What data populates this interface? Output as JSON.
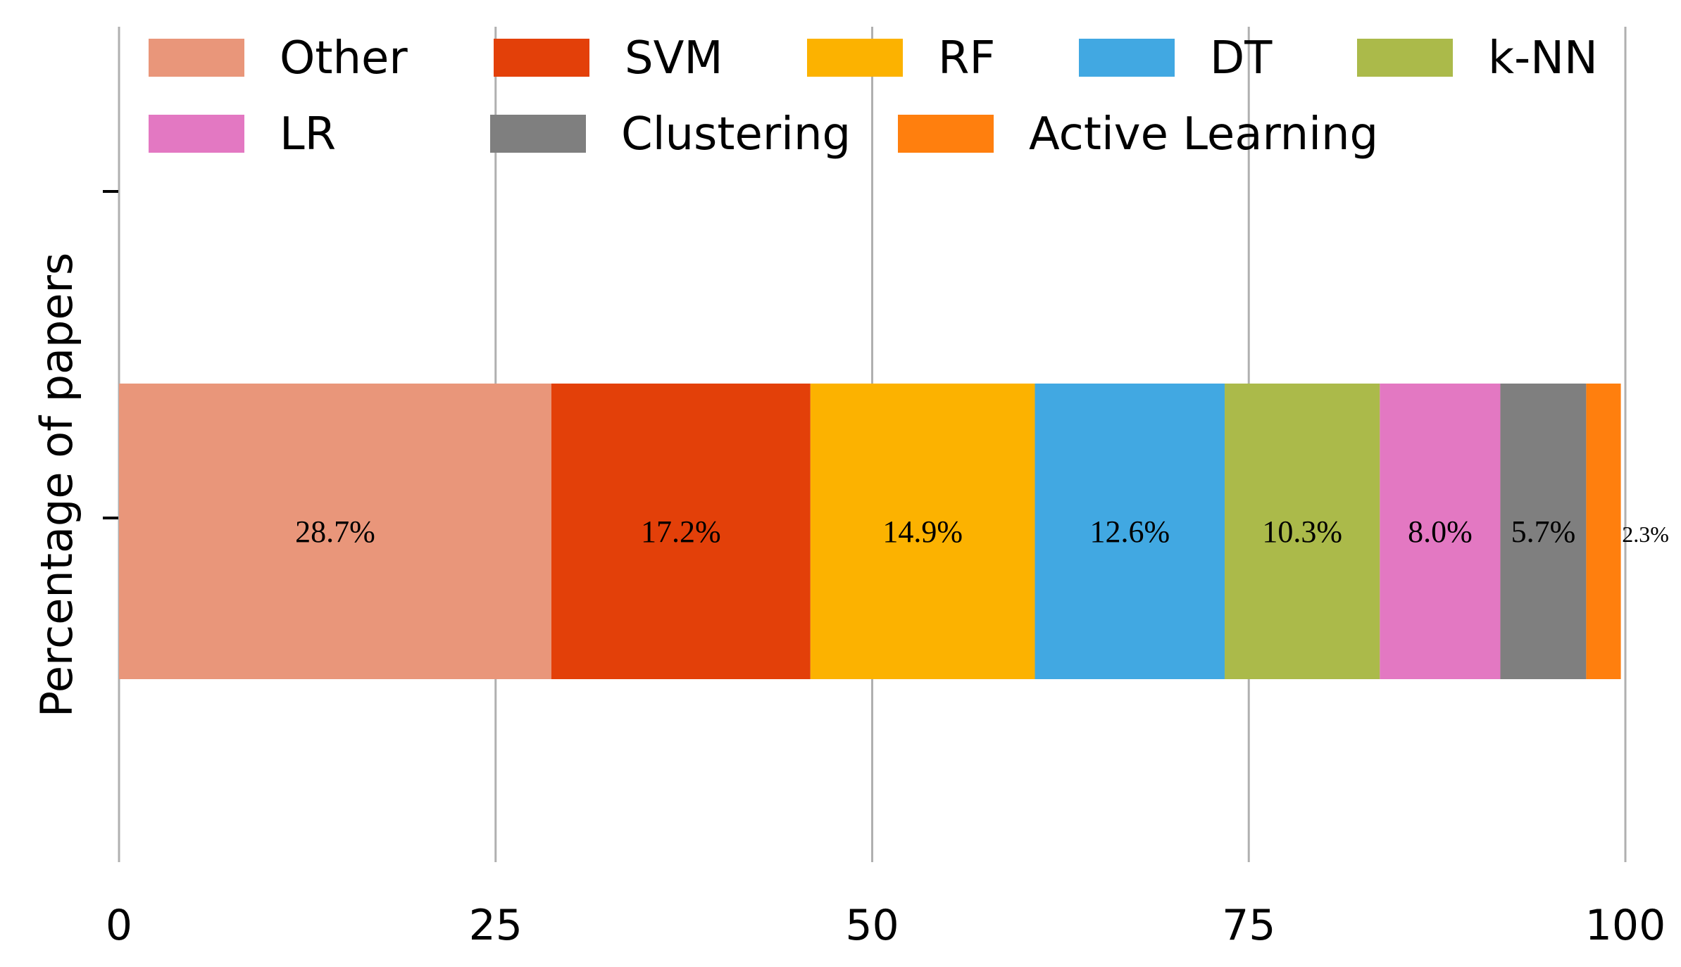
{
  "chart_data": {
    "type": "bar",
    "orientation": "horizontal-stacked",
    "title": "",
    "xlabel": "",
    "ylabel": "Percentage of papers",
    "xlim": [
      0,
      100
    ],
    "xticks": [
      "0",
      "25",
      "50",
      "75",
      "100"
    ],
    "grid": "vertical",
    "legend_position": "top",
    "series": [
      {
        "name": "Other",
        "value": 28.7,
        "label": "28.7%",
        "color": "#E9967A"
      },
      {
        "name": "SVM",
        "value": 17.2,
        "label": "17.2%",
        "color": "#E34009"
      },
      {
        "name": "RF",
        "value": 14.9,
        "label": "14.9%",
        "color": "#FCB200"
      },
      {
        "name": "DT",
        "value": 12.6,
        "label": "12.6%",
        "color": "#41A8E2"
      },
      {
        "name": "k-NN",
        "value": 10.3,
        "label": "10.3%",
        "color": "#ABBA4A"
      },
      {
        "name": "LR",
        "value": 8.0,
        "label": "8.0%",
        "color": "#E378C2"
      },
      {
        "name": "Clustering",
        "value": 5.7,
        "label": "5.7%",
        "color": "#7F7F7F"
      },
      {
        "name": "Active Learning",
        "value": 2.3,
        "label": "2.3%",
        "color": "#FF7F0E"
      }
    ]
  }
}
